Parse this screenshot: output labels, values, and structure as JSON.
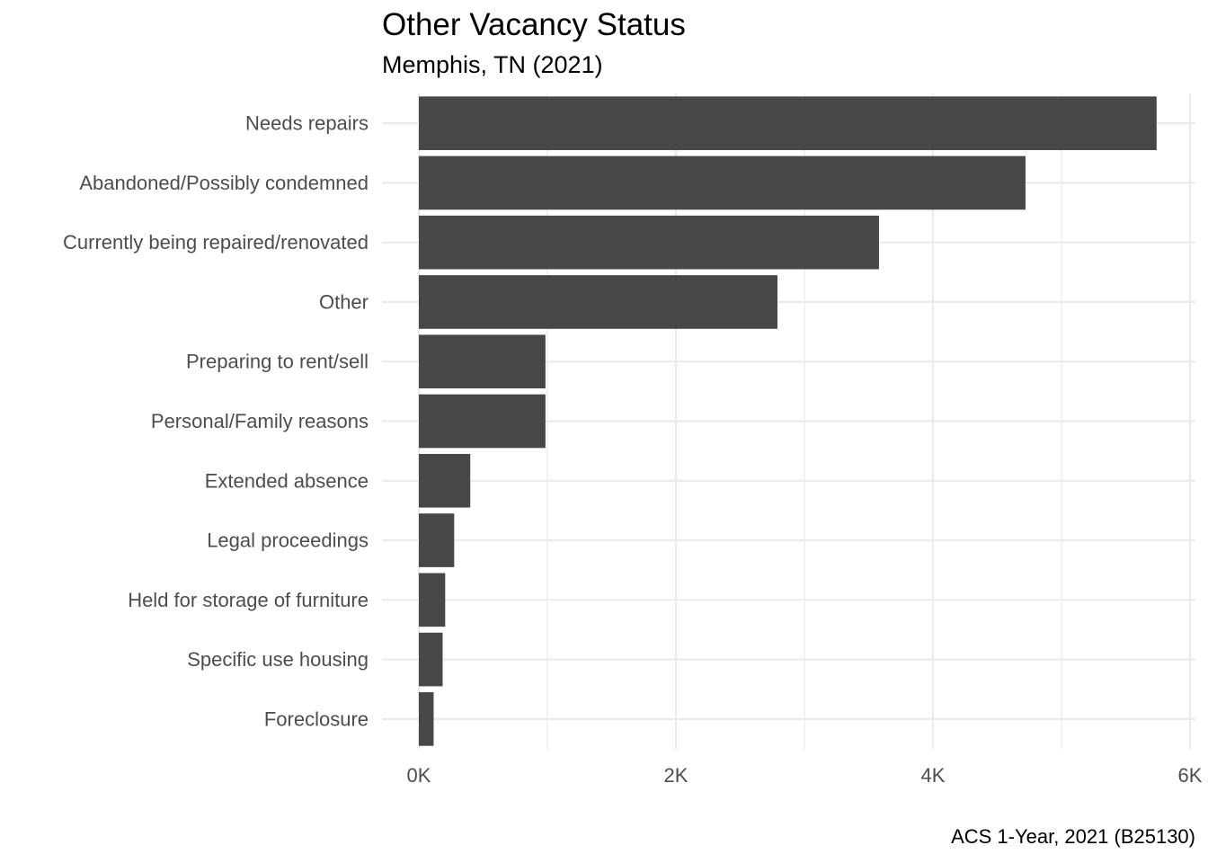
{
  "chart_data": {
    "type": "bar",
    "orientation": "horizontal",
    "title": "Other Vacancy Status",
    "subtitle": "Memphis, TN (2021)",
    "caption": "ACS 1-Year, 2021 (B25130)",
    "xlabel": "",
    "ylabel": "",
    "categories": [
      "Needs repairs",
      "Abandoned/Possibly condemned",
      "Currently being repaired/renovated",
      "Other",
      "Preparing to rent/sell",
      "Personal/Family reasons",
      "Extended absence",
      "Legal proceedings",
      "Held for storage of furniture",
      "Specific use housing",
      "Foreclosure"
    ],
    "values": [
      5740,
      4720,
      3580,
      2790,
      985,
      985,
      400,
      275,
      205,
      185,
      115
    ],
    "xlim": [
      0,
      6000
    ],
    "x_ticks": [
      0,
      2000,
      4000,
      6000
    ],
    "x_tick_labels": [
      "0K",
      "2K",
      "4K",
      "6K"
    ],
    "grid": true,
    "legend": "none",
    "bar_color": "#474747",
    "grid_color": "#ebebeb",
    "text_color": "#4d4d4d"
  }
}
